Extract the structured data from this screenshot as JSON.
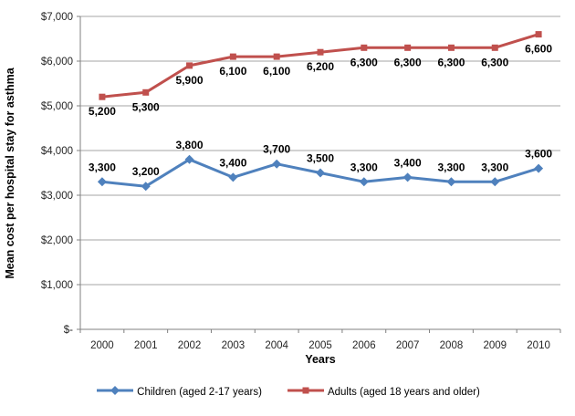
{
  "chart_data": {
    "type": "line",
    "xlabel": "Years",
    "ylabel": "Mean cost per hospital stay for asthma",
    "categories": [
      "2000",
      "2001",
      "2002",
      "2003",
      "2004",
      "2005",
      "2006",
      "2007",
      "2008",
      "2009",
      "2010"
    ],
    "ylim": [
      0,
      7000
    ],
    "y_tick_step": 1000,
    "y_tick_labels": [
      "$-",
      "$1,000",
      "$2,000",
      "$3,000",
      "$4,000",
      "$5,000",
      "$6,000",
      "$7,000"
    ],
    "grid": true,
    "legend_position": "bottom",
    "series": [
      {
        "name": "Children (aged 2-17 years)",
        "slug": "children",
        "values": [
          3300,
          3200,
          3800,
          3400,
          3700,
          3500,
          3300,
          3400,
          3300,
          3300,
          3600
        ],
        "labels": [
          "3,300",
          "3,200",
          "3,800",
          "3,400",
          "3,700",
          "3,500",
          "3,300",
          "3,400",
          "3,300",
          "3,300",
          "3,600"
        ],
        "color": "#4F81BD",
        "marker": "diamond",
        "label_position": "above"
      },
      {
        "name": "Adults (aged 18 years and older)",
        "slug": "adults",
        "values": [
          5200,
          5300,
          5900,
          6100,
          6100,
          6200,
          6300,
          6300,
          6300,
          6300,
          6600
        ],
        "labels": [
          "5,200",
          "5,300",
          "5,900",
          "6,100",
          "6,100",
          "6,200",
          "6,300",
          "6,300",
          "6,300",
          "6,300",
          "6,600"
        ],
        "color": "#C0504D",
        "marker": "square",
        "label_position": "below"
      }
    ],
    "colors": {
      "gridline": "#A6A6A6",
      "axis": "#808080",
      "tick_text": "#262626",
      "data_label_text": "#000000",
      "background": "#FFFFFF"
    }
  }
}
